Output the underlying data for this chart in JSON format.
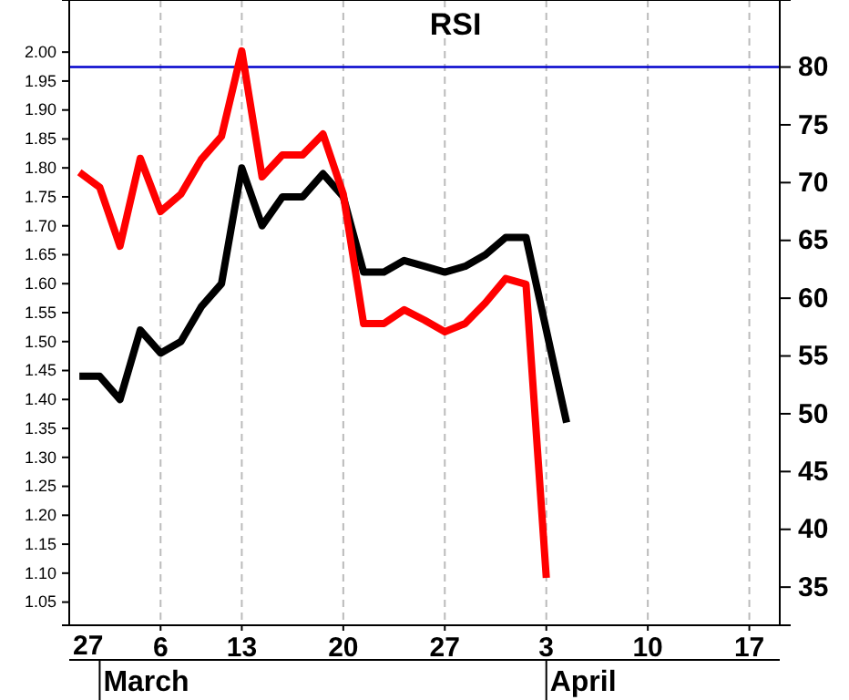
{
  "chart_data": {
    "type": "line",
    "title": "RSI",
    "categories": [
      null,
      null,
      null,
      null,
      "6",
      null,
      null,
      null,
      "13",
      null,
      null,
      null,
      null,
      "20",
      null,
      null,
      null,
      null,
      "27",
      null,
      null,
      null,
      null,
      "3",
      null,
      null,
      null,
      null,
      "10",
      null,
      null,
      null,
      null,
      "17",
      null
    ],
    "series": [
      {
        "color": "#000000",
        "axis": "y",
        "values": [
          1.44,
          1.44,
          1.4,
          1.52,
          1.48,
          1.5,
          1.56,
          1.6,
          1.8,
          1.7,
          1.75,
          1.75,
          1.79,
          1.75,
          1.62,
          1.62,
          1.64,
          1.63,
          1.62,
          1.63,
          1.65,
          1.68,
          1.68,
          1.52,
          1.36,
          null,
          null,
          null,
          null,
          null,
          null,
          null,
          null,
          null,
          null
        ]
      },
      {
        "color": "#ff0000",
        "axis": "y2",
        "values": [
          70.9,
          69.6,
          64.5,
          72.1,
          67.5,
          69.0,
          72.0,
          74.0,
          81.4,
          70.5,
          72.4,
          72.4,
          74.2,
          69.0,
          57.8,
          57.8,
          59.0,
          58.1,
          57.1,
          57.8,
          59.6,
          61.7,
          61.2,
          35.8,
          null,
          null,
          null,
          null,
          null,
          null,
          null,
          null,
          null,
          null,
          null
        ]
      }
    ],
    "ylim": [
      1.01,
      2.09
    ],
    "yticks": [
      {
        "value": 1.05,
        "label": "1.05"
      },
      {
        "value": 1.1,
        "label": "1.10"
      },
      {
        "value": 1.15,
        "label": "1.15"
      },
      {
        "value": 1.2,
        "label": "1.20"
      },
      {
        "value": 1.25,
        "label": "1.25"
      },
      {
        "value": 1.3,
        "label": "1.30"
      },
      {
        "value": 1.35,
        "label": "1.35"
      },
      {
        "value": 1.4,
        "label": "1.40"
      },
      {
        "value": 1.45,
        "label": "1.45"
      },
      {
        "value": 1.5,
        "label": "1.50"
      },
      {
        "value": 1.55,
        "label": "1.55"
      },
      {
        "value": 1.6,
        "label": "1.60"
      },
      {
        "value": 1.65,
        "label": "1.65"
      },
      {
        "value": 1.7,
        "label": "1.70"
      },
      {
        "value": 1.75,
        "label": "1.75"
      },
      {
        "value": 1.8,
        "label": "1.80"
      },
      {
        "value": 1.85,
        "label": "1.85"
      },
      {
        "value": 1.9,
        "label": "1.90"
      },
      {
        "value": 1.95,
        "label": "1.95"
      },
      {
        "value": 2.0,
        "label": "2.00"
      }
    ],
    "y2lim": [
      31.7,
      85.8
    ],
    "y2ticks": [
      35,
      40,
      45,
      50,
      55,
      60,
      65,
      70,
      75,
      80
    ],
    "ref_lines": [
      {
        "axis": "y2",
        "value": 80,
        "color": "#0000cc"
      }
    ],
    "annotations": [
      "27",
      "March",
      "April"
    ],
    "grid": "x",
    "marker": "none",
    "line_style": "solid"
  }
}
